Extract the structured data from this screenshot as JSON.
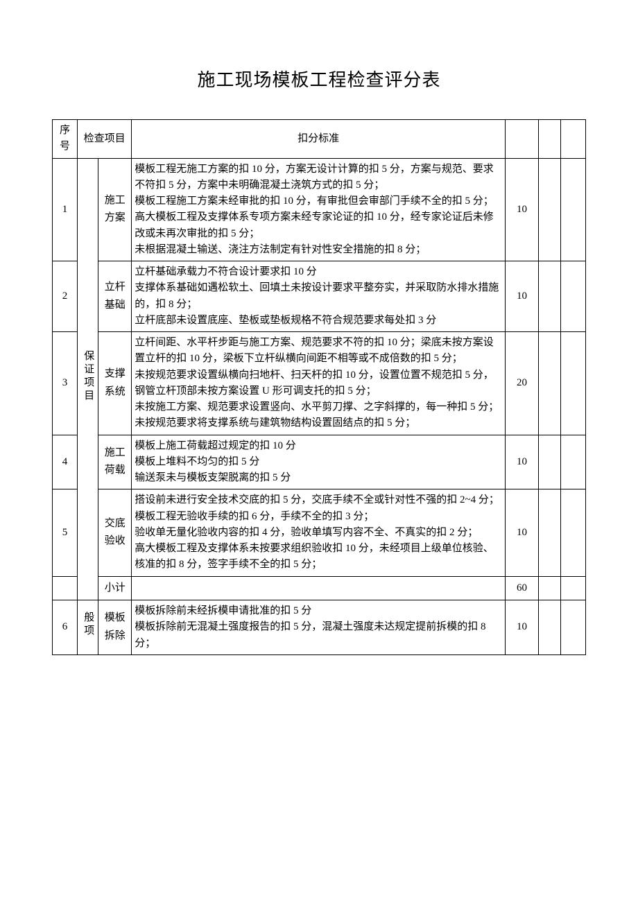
{
  "title": "施工现场模板工程检查评分表",
  "header": {
    "seq": "序号",
    "item": "检查项目",
    "standard": "扣分标准"
  },
  "categories": {
    "guarantee": "保证项目",
    "general": "般项"
  },
  "rows": [
    {
      "seq": "1",
      "sub": "施工方案",
      "std": "模板工程无施工方案的扣 10 分，方案无设计计算的扣 5 分，方案与规范、要求不符扣 5 分，方案中未明确混凝土浇筑方式的扣 5 分；\n模板工程施工方案未经审批的扣 10 分，有审批但会审部门手续不全的扣 5 分；\n高大模板工程及支撑体系专项方案未经专家论证的扣 10 分，经专家论证后未修改或未再次审批的扣 5 分；\n未根据混凝土输送、浇注方法制定有针对性安全措施的扣 8 分；",
      "score": "10"
    },
    {
      "seq": "2",
      "sub": "立杆基础",
      "std": "立杆基础承载力不符合设计要求扣 10 分\n支撑体系基础如遇松软土、回填土未按设计要求平整夯实，并采取防水排水措施的，扣 8 分；\n立杆底部未设置底座、垫板或垫板规格不符合规范要求每处扣 3 分",
      "score": "10"
    },
    {
      "seq": "3",
      "sub": "支撑系统",
      "std": "立杆间距、水平杆步距与施工方案、规范要求不符的扣 10 分；梁底未按方案设置立杆的扣 10 分，梁板下立杆纵横向间距不相等或不成倍数的扣 5 分；\n未按规范要求设置纵横向扫地杆、扫天杆的扣 10 分，设置位置不规范扣 5 分，钢管立杆顶部未按方案设置 U 形可调支托的扣 5 分；\n未按施工方案、规范要求设置竖向、水平剪刀撑、之字斜撑的，每一种扣 5 分；\n未按规范要求将支撑系统与建筑物结构设置固结点的扣 5 分；",
      "score": "20"
    },
    {
      "seq": "4",
      "sub": "施工荷载",
      "std": "模板上施工荷载超过规定的扣 10 分\n模板上堆料不均匀的扣 5 分\n输送泵未与模板支架脱离的扣 5 分",
      "score": "10"
    },
    {
      "seq": "5",
      "sub": "交底验收",
      "std": "搭设前未进行安全技术交底的扣 5 分，交底手续不全或针对性不强的扣 2~4 分；\n模板工程无验收手续的扣 6 分，手续不全的扣 3 分；\n验收单无量化验收内容的扣 4 分，验收单填写内容不全、不真实的扣 2 分；\n高大模板工程及支撑体系未按要求组织验收扣 10 分，未经项目上级单位核验、核准的扣 8 分，签字手续不全的扣 5 分；",
      "score": "10"
    }
  ],
  "subtotal": {
    "label": "小计",
    "value": "60"
  },
  "row6": {
    "seq": "6",
    "sub": "模板拆除",
    "std": "模板拆除前未经拆模申请批准的扣 5 分\n模板拆除前无混凝土强度报告的扣 5 分，混凝土强度未达规定提前拆模的扣 8 分；",
    "score": "10"
  },
  "style": {
    "title_fontsize": 26,
    "body_fontsize": 15,
    "line_height": 1.55,
    "border_color": "#000000",
    "background_color": "#ffffff",
    "text_color": "#000000",
    "col_widths": {
      "seq": 36,
      "cat": 28,
      "sub": 48,
      "score": 48,
      "blank1": 32,
      "blank2": 36
    }
  }
}
